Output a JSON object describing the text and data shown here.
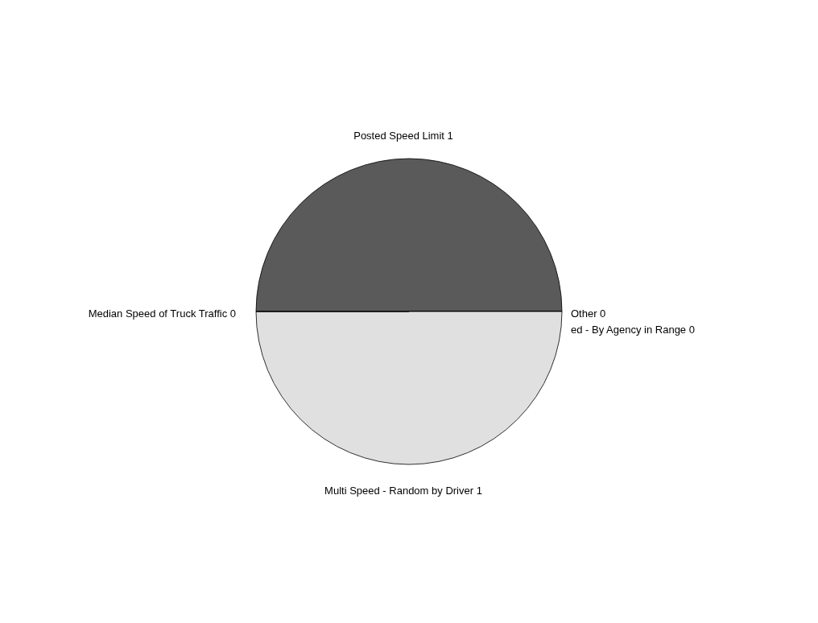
{
  "chart_data": {
    "type": "pie",
    "categories": [
      "Posted Speed Limit 1",
      "Other 0",
      "ed - By Agency in Range 0",
      "Multi Speed - Random by Driver 1",
      "Median Speed of Truck Traffic 0"
    ],
    "values": [
      50,
      0,
      0,
      50,
      0
    ],
    "colors": [
      "#5a5a5a",
      "#a6a6a6",
      "#808080",
      "#e0e0e0",
      "#c0c0c0"
    ]
  }
}
